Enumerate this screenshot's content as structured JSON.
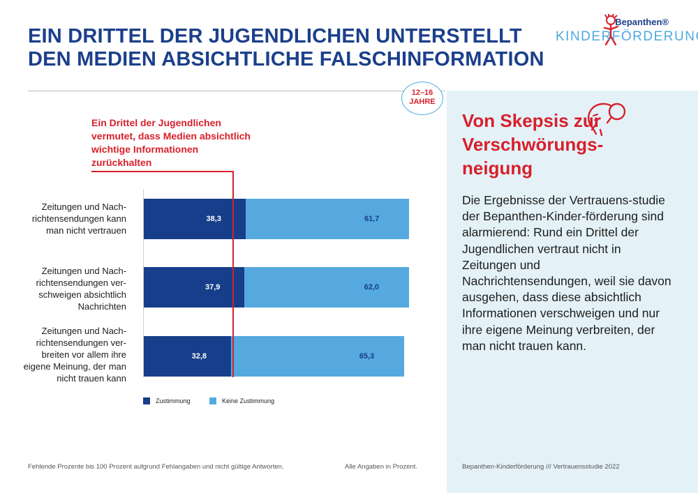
{
  "header": {
    "title": "EIN DRITTEL DER JUGENDLICHEN UNTERSTELLT DEN MEDIEN ABSICHTLICHE FALSCHINFORMATION"
  },
  "logo": {
    "brand": "Bepanthen®",
    "program": "KINDERFÖRDERUNG"
  },
  "age_badge": {
    "range": "12–16",
    "unit": "JAHRE"
  },
  "annotation": {
    "text": "Ein Drittel der Jugendlichen vermutet, dass Medien absichtlich wichtige Informationen zurückhalten"
  },
  "side": {
    "heading": "Von Skepsis zur Verschwörungs-neigung",
    "body": "Die Ergebnisse der Vertrauens-studie der Bepanthen-Kinder-förderung sind alarmierend: Rund ein Drittel der Jugendlichen vertraut nicht in Zeitungen und Nachrichtensendungen, weil sie davon ausgehen, dass diese absichtlich Informationen verschweigen und nur ihre eigene Meinung verbreiten, der man nicht trauen kann.",
    "icon": "thinking-head-icon"
  },
  "chart_data": {
    "type": "bar",
    "orientation": "horizontal",
    "stacked": true,
    "categories": [
      "Zeitungen und Nach-richtensendungen kann man nicht vertrauen",
      "Zeitungen und Nach-richtensendungen ver-schweigen absichtlich Nachrichten",
      "Zeitungen und Nach-richtensendungen ver-breiten vor allem ihre eigene Meinung, der man nicht trauen kann"
    ],
    "series": [
      {
        "name": "Zustimmung",
        "values": [
          38.3,
          37.9,
          32.8
        ],
        "labels": [
          "38,3",
          "37,9",
          "32,8"
        ],
        "color": "#163e8a"
      },
      {
        "name": "Keine Zustimmung",
        "values": [
          61.7,
          62.0,
          65.3
        ],
        "labels": [
          "61,7",
          "62,0",
          "65,3"
        ],
        "color": "#55a9de"
      }
    ],
    "xlim": [
      0,
      100
    ],
    "reference_value": 33.3,
    "legend": "bottom-left"
  },
  "footer": {
    "note": "Fehlende Prozente bis 100 Prozent aufgrund Fehlangaben und nicht gültige Antworten.",
    "units": "Alle Angaben in Prozent.",
    "source": "Bepanthen-Kinderförderung /// Vertrauensstudie 2022"
  }
}
